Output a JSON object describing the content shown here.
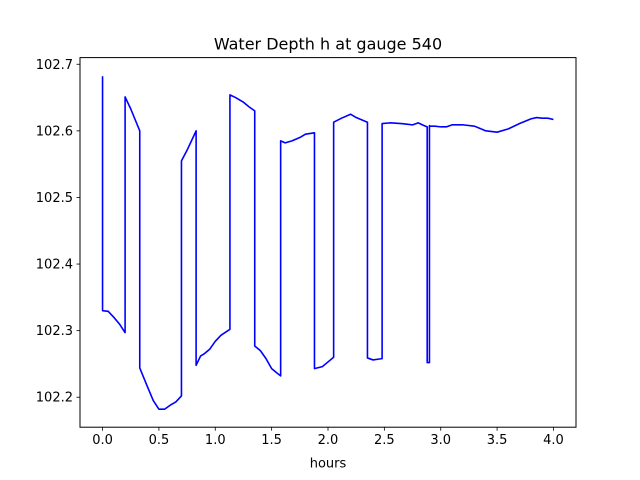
{
  "chart_data": {
    "type": "line",
    "title": "Water Depth h at gauge 540",
    "xlabel": "hours",
    "ylabel": "",
    "xlim": [
      -0.2,
      4.2
    ],
    "ylim": [
      102.155,
      102.71
    ],
    "xticks": [
      0.0,
      0.5,
      1.0,
      1.5,
      2.0,
      2.5,
      3.0,
      3.5,
      4.0
    ],
    "xtick_labels": [
      "0.0",
      "0.5",
      "1.0",
      "1.5",
      "2.0",
      "2.5",
      "3.0",
      "3.5",
      "4.0"
    ],
    "yticks": [
      102.2,
      102.3,
      102.4,
      102.5,
      102.6,
      102.7
    ],
    "ytick_labels": [
      "102.2",
      "102.3",
      "102.4",
      "102.5",
      "102.6",
      "102.7"
    ],
    "grid": false,
    "series": [
      {
        "color": "#0000ff",
        "x": [
          0.0,
          0.0,
          0.05,
          0.1,
          0.15,
          0.2,
          0.2,
          0.25,
          0.33,
          0.33,
          0.4,
          0.45,
          0.5,
          0.55,
          0.6,
          0.65,
          0.7,
          0.7,
          0.75,
          0.83,
          0.83,
          0.87,
          0.9,
          0.95,
          1.0,
          1.05,
          1.13,
          1.13,
          1.18,
          1.25,
          1.3,
          1.35,
          1.35,
          1.4,
          1.45,
          1.5,
          1.55,
          1.58,
          1.58,
          1.62,
          1.68,
          1.75,
          1.8,
          1.88,
          1.88,
          1.95,
          2.0,
          2.05,
          2.05,
          2.12,
          2.2,
          2.25,
          2.35,
          2.35,
          2.4,
          2.48,
          2.48,
          2.55,
          2.65,
          2.7,
          2.75,
          2.8,
          2.85,
          2.88,
          2.88,
          2.9,
          2.9,
          2.9,
          2.95,
          3.0,
          3.05,
          3.1,
          3.2,
          3.3,
          3.4,
          3.5,
          3.6,
          3.7,
          3.8,
          3.85,
          3.9,
          3.95,
          4.0
        ],
        "y": [
          102.682,
          102.33,
          102.329,
          102.32,
          102.31,
          102.297,
          102.651,
          102.633,
          102.6,
          102.244,
          102.215,
          102.195,
          102.182,
          102.182,
          102.188,
          102.193,
          102.202,
          102.555,
          102.571,
          102.6,
          102.248,
          102.262,
          102.265,
          102.272,
          102.284,
          102.293,
          102.302,
          102.654,
          102.65,
          102.643,
          102.636,
          102.63,
          102.277,
          102.27,
          102.258,
          102.243,
          102.236,
          102.232,
          102.585,
          102.582,
          102.585,
          102.59,
          102.595,
          102.597,
          102.243,
          102.246,
          102.253,
          102.26,
          102.613,
          102.619,
          102.625,
          102.62,
          102.613,
          102.259,
          102.256,
          102.258,
          102.611,
          102.612,
          102.611,
          102.61,
          102.609,
          102.612,
          102.608,
          102.606,
          102.252,
          102.252,
          102.608,
          102.607,
          102.607,
          102.606,
          102.606,
          102.609,
          102.609,
          102.607,
          102.6,
          102.598,
          102.603,
          102.611,
          102.618,
          102.62,
          102.619,
          102.619,
          102.617
        ]
      }
    ]
  }
}
